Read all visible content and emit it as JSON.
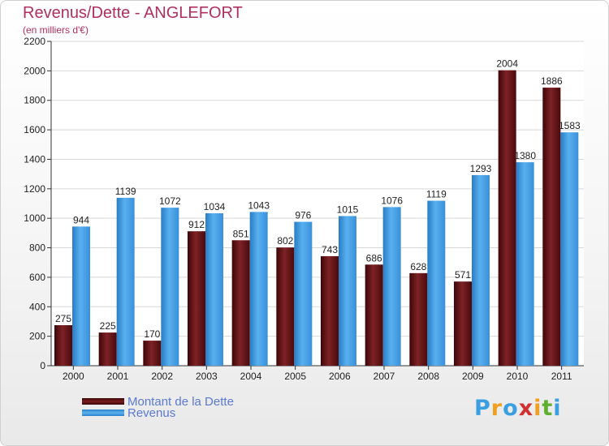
{
  "header": {
    "title": "Revenus/Dette - ANGLEFORT",
    "subtitle": "(en milliers d'€)"
  },
  "chart_data": {
    "type": "bar",
    "categories": [
      "2000",
      "2001",
      "2002",
      "2003",
      "2004",
      "2005",
      "2006",
      "2007",
      "2008",
      "2009",
      "2010",
      "2011"
    ],
    "series": [
      {
        "name": "Montant de la Dette",
        "color": "#7a1a1e",
        "values": [
          275,
          225,
          170,
          912,
          851,
          802,
          743,
          686,
          628,
          571,
          2004,
          1886
        ]
      },
      {
        "name": "Revenus",
        "color": "#4aa6e8",
        "values": [
          944,
          1139,
          1072,
          1034,
          1043,
          976,
          1015,
          1076,
          1119,
          1293,
          1380,
          1583
        ]
      }
    ],
    "yticks": [
      0,
      200,
      400,
      600,
      800,
      1000,
      1200,
      1400,
      1600,
      1800,
      2000,
      2200
    ],
    "ylim": [
      0,
      2200
    ],
    "grid": true,
    "legend_placement": "bottom-left"
  },
  "legend": {
    "items": [
      {
        "label": "Montant de la Dette",
        "color": "#7a1a1e"
      },
      {
        "label": "Revenus",
        "color": "#4aa6e8"
      }
    ]
  },
  "logo": {
    "letters": [
      "P",
      "r",
      "o",
      "x",
      "i",
      "t",
      "i"
    ],
    "colors": [
      "#3a9fe0",
      "#f0a020",
      "#3a9fe0",
      "#d03030",
      "#f0a020",
      "#60b030",
      "#3a9fe0"
    ]
  }
}
